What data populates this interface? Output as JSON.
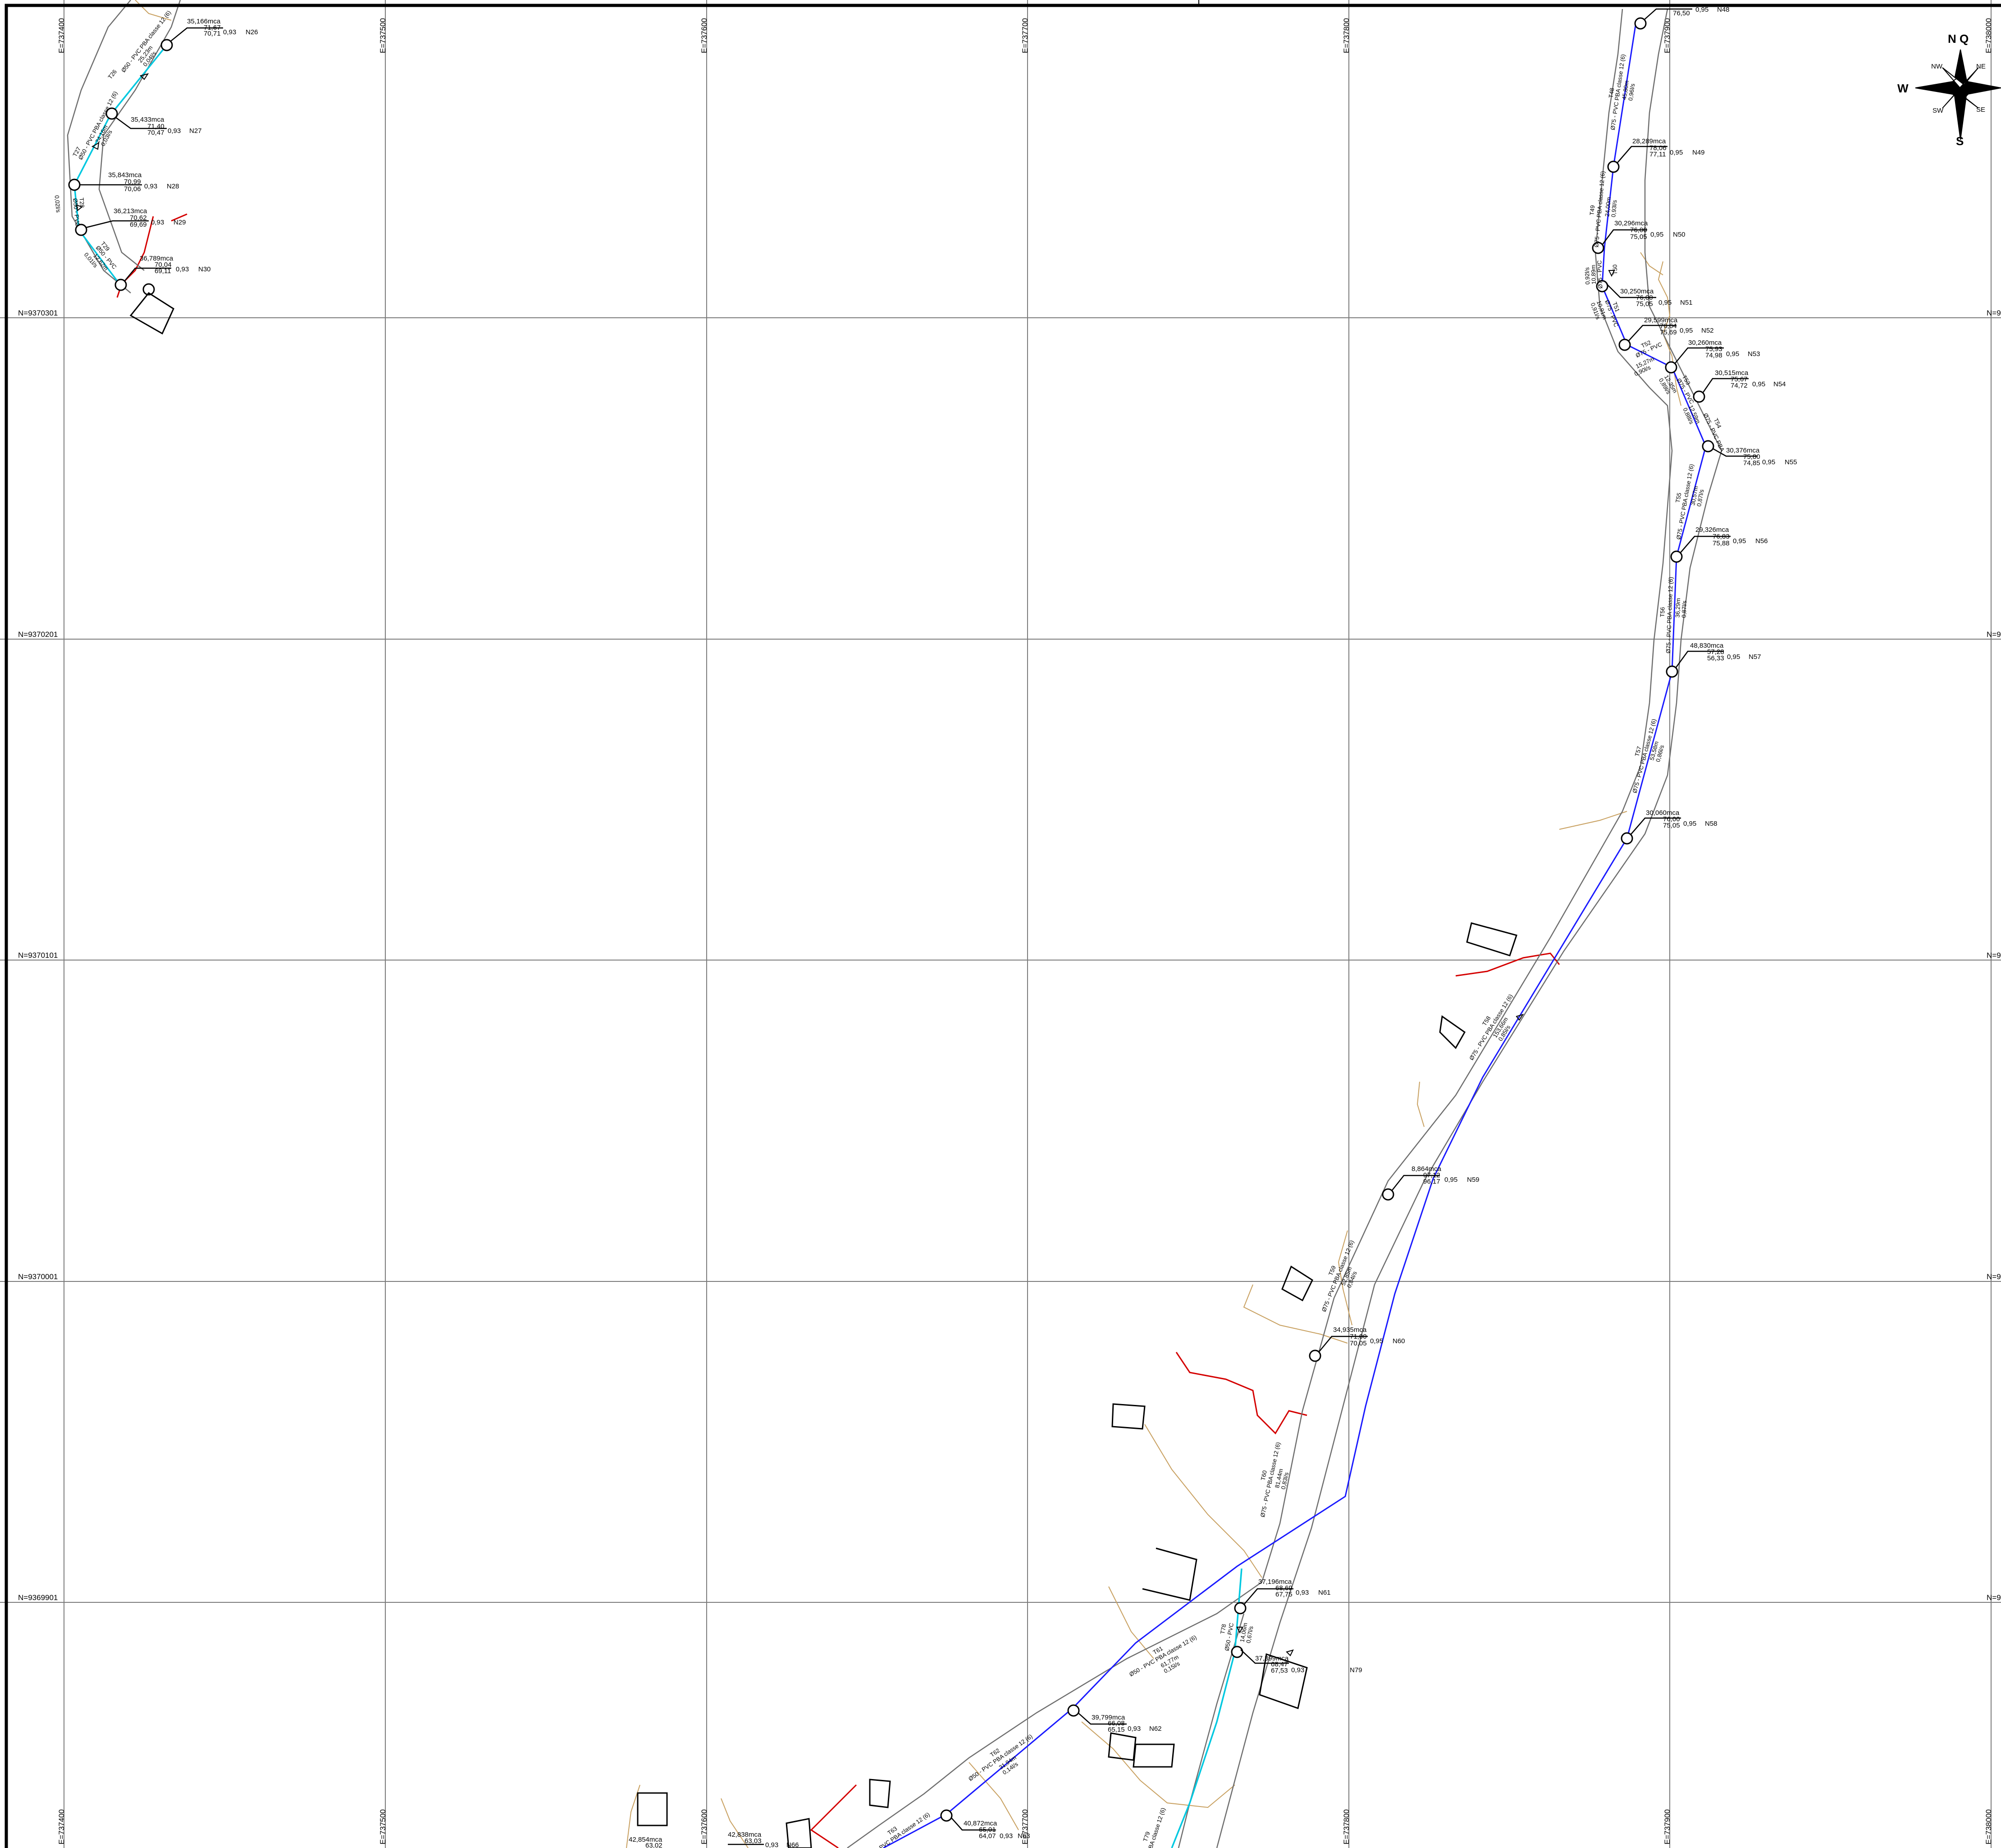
{
  "grid": {
    "east_labels": [
      "E=737400",
      "E=737500",
      "E=737600",
      "E=737700",
      "E=737800",
      "E=737900",
      "E=738000"
    ],
    "north_labels": [
      "N=9370301",
      "N=9370201",
      "N=9370101",
      "N=9370001",
      "N=9369901"
    ]
  },
  "compass": {
    "n": "N",
    "q": "Q",
    "s": "S",
    "w": "W",
    "nw": "NW",
    "ne": "NE",
    "sw": "SW",
    "se": "SE"
  },
  "nodes": [
    {
      "id": "N26",
      "pressure": "35,166mca",
      "z1": "71,67",
      "z2": "70,71",
      "factor": "0,93"
    },
    {
      "id": "N27",
      "pressure": "35,433mca",
      "z1": "71,40",
      "z2": "70,47",
      "factor": "0,93"
    },
    {
      "id": "N28",
      "pressure": "35,843mca",
      "z1": "70,99",
      "z2": "70,06",
      "factor": "0,93"
    },
    {
      "id": "N29",
      "pressure": "36,213mca",
      "z1": "70,62",
      "z2": "69,69",
      "factor": "0,93"
    },
    {
      "id": "N30",
      "pressure": "36,789mca",
      "z1": "70,04",
      "z2": "69,11",
      "factor": "0,93"
    },
    {
      "id": "N48",
      "pressure": "",
      "z1": "76,50",
      "z2": "",
      "factor": "0,95"
    },
    {
      "id": "N49",
      "pressure": "28,289mca",
      "z1": "78,06",
      "z2": "77,11",
      "factor": "0,95"
    },
    {
      "id": "N50",
      "pressure": "30,296mca",
      "z1": "76,00",
      "z2": "75,05",
      "factor": "0,95"
    },
    {
      "id": "N51",
      "pressure": "30,250mca",
      "z1": "76,00",
      "z2": "75,05",
      "factor": "0,95"
    },
    {
      "id": "N52",
      "pressure": "29,599mca",
      "z1": "76,64",
      "z2": "75,69",
      "factor": "0,95"
    },
    {
      "id": "N53",
      "pressure": "30,260mca",
      "z1": "75,93",
      "z2": "74,98",
      "factor": "0,95"
    },
    {
      "id": "N54",
      "pressure": "30,515mca",
      "z1": "75,67",
      "z2": "74,72",
      "factor": "0,95"
    },
    {
      "id": "N55",
      "pressure": "30,376mca",
      "z1": "75,80",
      "z2": "74,85",
      "factor": "0,95"
    },
    {
      "id": "N56",
      "pressure": "29,326mca",
      "z1": "76,83",
      "z2": "75,88",
      "factor": "0,95"
    },
    {
      "id": "N57",
      "pressure": "48,830mca",
      "z1": "57,28",
      "z2": "56,33",
      "factor": "0,95"
    },
    {
      "id": "N58",
      "pressure": "30,060mca",
      "z1": "76,00",
      "z2": "75,05",
      "factor": "0,95"
    },
    {
      "id": "N59",
      "pressure": "8,864mca",
      "z1": "97,12",
      "z2": "96,17",
      "factor": "0,95"
    },
    {
      "id": "N60",
      "pressure": "34,935mca",
      "z1": "71,00",
      "z2": "70,05",
      "factor": "0,95"
    },
    {
      "id": "N61",
      "pressure": "37,196mca",
      "z1": "68,69",
      "z2": "67,75",
      "factor": "0,93"
    },
    {
      "id": "N79",
      "pressure": "37,399mca",
      "z1": "68,47",
      "z2": "67,53",
      "factor": "0,93"
    },
    {
      "id": "N62",
      "pressure": "39,799mca",
      "z1": "66,08",
      "z2": "65,15",
      "factor": "0,93"
    },
    {
      "id": "N63",
      "pressure": "40,872mca",
      "z1": "65,01",
      "z2": "64,07",
      "factor": "0,93"
    },
    {
      "id": "N66",
      "pressure": "42,838mca",
      "z1": "63,03",
      "z2": "",
      "factor": "0,93"
    },
    {
      "id": "",
      "pressure": "42,854mca",
      "z1": "63,02",
      "z2": "",
      "factor": ""
    }
  ],
  "pipes": [
    {
      "tag": "T26",
      "spec": "Ø50 - PVC PBA classe 12 (6)",
      "len": "25,23m",
      "flow": "0,04l/s"
    },
    {
      "tag": "T27",
      "spec": "Ø50 - PVC PBA classe 12 (6)",
      "len": "24,16m",
      "flow": "0,03l/s"
    },
    {
      "tag": "T28",
      "spec": "Ø50 - PVC",
      "len": "",
      "flow": "0,02l/s"
    },
    {
      "tag": "T29",
      "spec": "Ø50 - PVC",
      "len": "12,62m",
      "flow": "0,01l/s"
    },
    {
      "tag": "T48",
      "spec": "Ø75 - PVC PBA classe 12 (6)",
      "len": "45,80m",
      "flow": "0,96l/s"
    },
    {
      "tag": "T49",
      "spec": "Ø75 - PVC PBA classe 12 (6)",
      "len": "24,00m",
      "flow": "0,93l/s"
    },
    {
      "tag": "T50",
      "spec": "Ø75 - PVC",
      "len": "10,89m",
      "flow": "0,92l/s"
    },
    {
      "tag": "T51",
      "spec": "Ø75 - PVC",
      "len": "10,91m",
      "flow": "0,91l/s"
    },
    {
      "tag": "T52",
      "spec": "Ø75 - PVC",
      "len": "15,27m",
      "flow": "0,90l/s"
    },
    {
      "tag": "T53",
      "spec": "Ø75 - PVC",
      "len": "12,35m",
      "flow": "0,89l/s"
    },
    {
      "tag": "T54",
      "spec": "Ø75 - PVC PBA",
      "len": "12,59m",
      "flow": "0,88l/s"
    },
    {
      "tag": "T55",
      "spec": "Ø75 - PVC PBA classe 12 (6)",
      "len": "30,57m",
      "flow": "0,87l/s"
    },
    {
      "tag": "T56",
      "spec": "Ø75 - PVC PBA classe 12 (6)",
      "len": "36,29m",
      "flow": "0,87l/s"
    },
    {
      "tag": "T57",
      "spec": "Ø75 - PVC PBA classe 12 (6)",
      "len": "53,58m",
      "flow": "0,86l/s"
    },
    {
      "tag": "T58",
      "spec": "Ø75 - PVC PBA classe 12 (6)",
      "len": "153,66m",
      "flow": "0,85l/s"
    },
    {
      "tag": "T59",
      "spec": "Ø75 - PVC PBA classe 12 (6)",
      "len": "52,85m",
      "flow": "0,84l/s"
    },
    {
      "tag": "T60",
      "spec": "Ø75 - PVC PBA classe 12 (6)",
      "len": "81,44m",
      "flow": "0,83l/s"
    },
    {
      "tag": "T78",
      "spec": "Ø50 - PVC",
      "len": "14,06m",
      "flow": "0,67l/s"
    },
    {
      "tag": "T61",
      "spec": "Ø50 - PVC PBA classe 12 (6)",
      "len": "61,77m",
      "flow": "0,15l/s"
    },
    {
      "tag": "T62",
      "spec": "Ø50 - PVC PBA classe 12 (6)",
      "len": "31,94m",
      "flow": "0,14l/s"
    },
    {
      "tag": "T63",
      "spec": "Ø50 - PVC PBA classe 12 (6)",
      "len": "",
      "flow": ""
    },
    {
      "tag": "T79",
      "spec": "PBA classe 12 (6)",
      "len": "",
      "flow": ""
    }
  ]
}
